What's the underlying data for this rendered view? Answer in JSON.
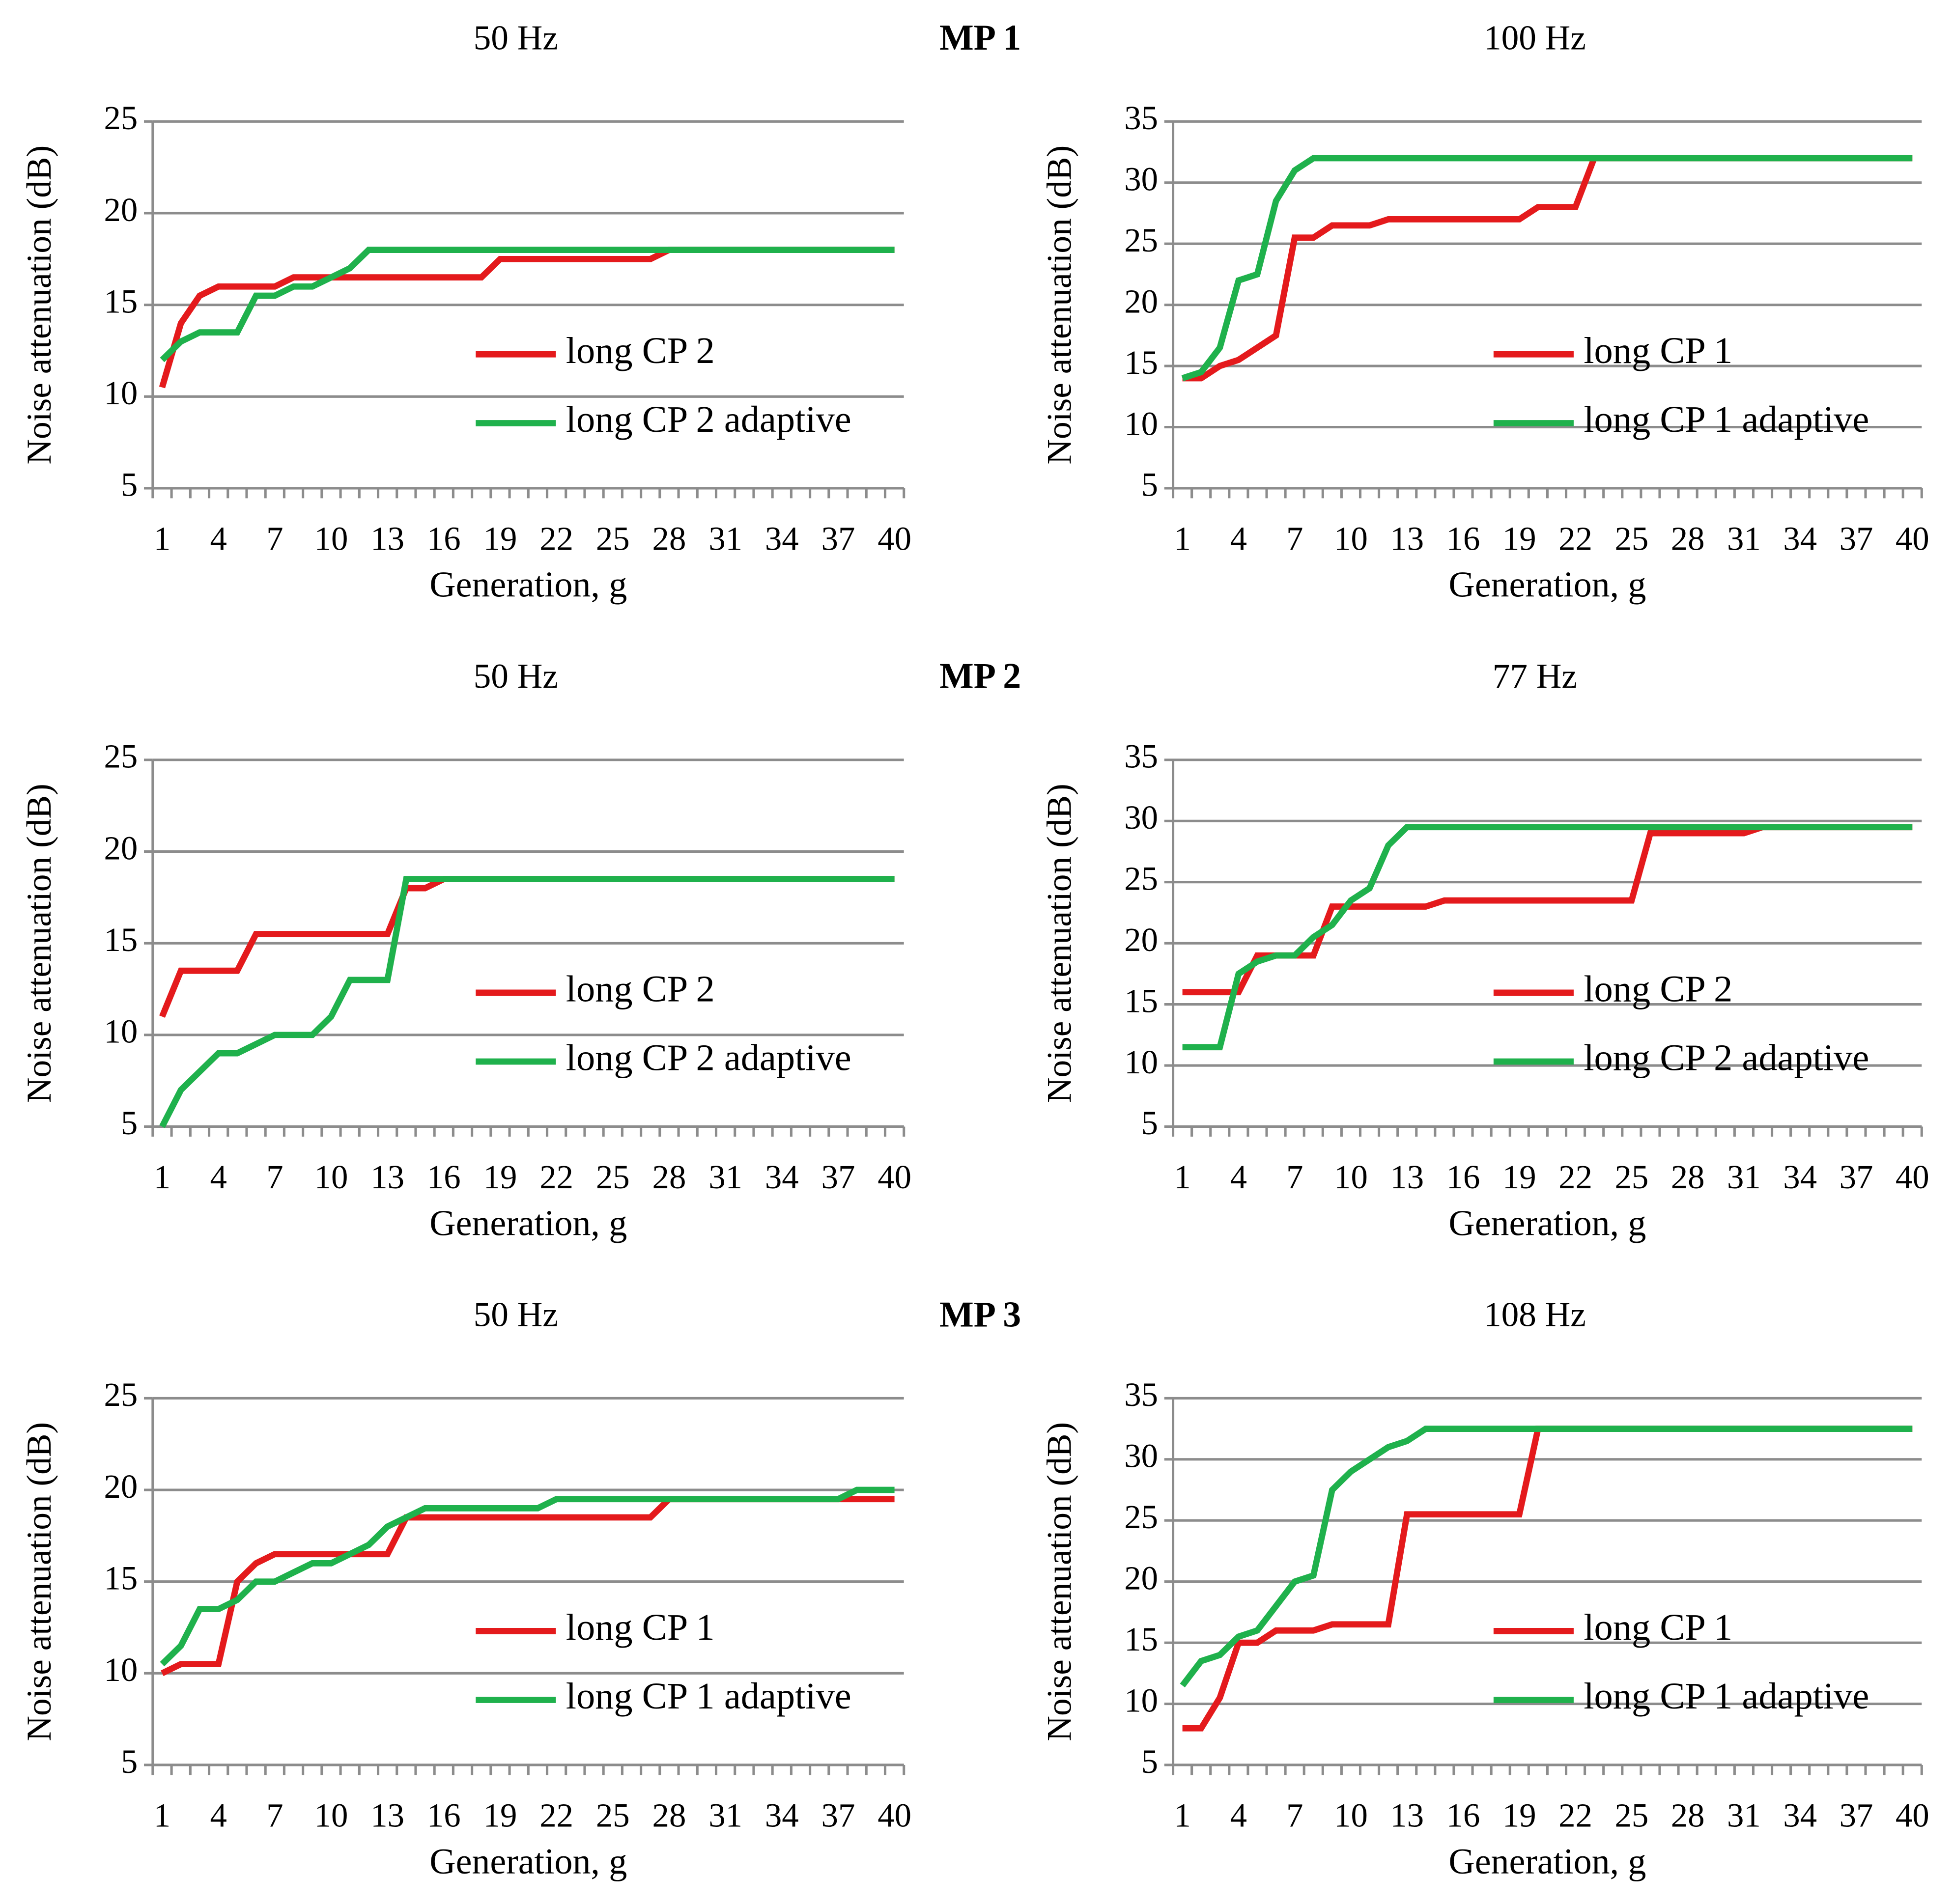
{
  "panel_labels": [
    "MP 1",
    "MP 2",
    "MP 3"
  ],
  "chart_data": [
    {
      "type": "line",
      "title": "50 Hz",
      "xlabel": "Generation, g",
      "ylabel": "Noise attenuation (dB)",
      "x": [
        1,
        2,
        3,
        4,
        5,
        6,
        7,
        8,
        9,
        10,
        11,
        12,
        13,
        14,
        15,
        16,
        17,
        18,
        19,
        20,
        21,
        22,
        23,
        24,
        25,
        26,
        27,
        28,
        29,
        30,
        31,
        32,
        33,
        34,
        35,
        36,
        37,
        38,
        39,
        40
      ],
      "xlim": [
        1,
        40
      ],
      "xticks": [
        1,
        4,
        7,
        10,
        13,
        16,
        19,
        22,
        25,
        28,
        31,
        34,
        37,
        40
      ],
      "ylim": [
        5,
        25
      ],
      "yticks": [
        5,
        10,
        15,
        20,
        25
      ],
      "grid": true,
      "legend": "lower right",
      "series": [
        {
          "name": "long CP 2",
          "color": "#e41a1c",
          "values": [
            10.5,
            14,
            15.5,
            16,
            16,
            16,
            16,
            16.5,
            16.5,
            16.5,
            16.5,
            16.5,
            16.5,
            16.5,
            16.5,
            16.5,
            16.5,
            16.5,
            17.5,
            17.5,
            17.5,
            17.5,
            17.5,
            17.5,
            17.5,
            17.5,
            17.5,
            18,
            18,
            18,
            18,
            18,
            18,
            18,
            18,
            18,
            18,
            18,
            18,
            18
          ]
        },
        {
          "name": "long CP 2 adaptive",
          "color": "#1fb14c",
          "values": [
            12,
            13,
            13.5,
            13.5,
            13.5,
            15.5,
            15.5,
            16,
            16,
            16.5,
            17,
            18,
            18,
            18,
            18,
            18,
            18,
            18,
            18,
            18,
            18,
            18,
            18,
            18,
            18,
            18,
            18,
            18,
            18,
            18,
            18,
            18,
            18,
            18,
            18,
            18,
            18,
            18,
            18,
            18
          ]
        }
      ]
    },
    {
      "type": "line",
      "title": "100 Hz",
      "xlabel": "Generation, g",
      "ylabel": "Noise attenuation (dB)",
      "x": [
        1,
        2,
        3,
        4,
        5,
        6,
        7,
        8,
        9,
        10,
        11,
        12,
        13,
        14,
        15,
        16,
        17,
        18,
        19,
        20,
        21,
        22,
        23,
        24,
        25,
        26,
        27,
        28,
        29,
        30,
        31,
        32,
        33,
        34,
        35,
        36,
        37,
        38,
        39,
        40
      ],
      "xlim": [
        1,
        40
      ],
      "xticks": [
        1,
        4,
        7,
        10,
        13,
        16,
        19,
        22,
        25,
        28,
        31,
        34,
        37,
        40
      ],
      "ylim": [
        5,
        35
      ],
      "yticks": [
        5,
        10,
        15,
        20,
        25,
        30,
        35
      ],
      "grid": true,
      "legend": "lower right",
      "series": [
        {
          "name": "long CP 1",
          "color": "#e41a1c",
          "values": [
            14,
            14,
            15,
            15.5,
            16.5,
            17.5,
            25.5,
            25.5,
            26.5,
            26.5,
            26.5,
            27,
            27,
            27,
            27,
            27,
            27,
            27,
            27,
            28,
            28,
            28,
            32,
            32,
            32,
            32,
            32,
            32,
            32,
            32,
            32,
            32,
            32,
            32,
            32,
            32,
            32,
            32,
            32,
            32
          ]
        },
        {
          "name": "long CP 1 adaptive",
          "color": "#1fb14c",
          "values": [
            14,
            14.5,
            16.5,
            22,
            22.5,
            28.5,
            31,
            32,
            32,
            32,
            32,
            32,
            32,
            32,
            32,
            32,
            32,
            32,
            32,
            32,
            32,
            32,
            32,
            32,
            32,
            32,
            32,
            32,
            32,
            32,
            32,
            32,
            32,
            32,
            32,
            32,
            32,
            32,
            32,
            32
          ]
        }
      ]
    },
    {
      "type": "line",
      "title": "50 Hz",
      "xlabel": "Generation, g",
      "ylabel": "Noise attenuation (dB)",
      "x": [
        1,
        2,
        3,
        4,
        5,
        6,
        7,
        8,
        9,
        10,
        11,
        12,
        13,
        14,
        15,
        16,
        17,
        18,
        19,
        20,
        21,
        22,
        23,
        24,
        25,
        26,
        27,
        28,
        29,
        30,
        31,
        32,
        33,
        34,
        35,
        36,
        37,
        38,
        39,
        40
      ],
      "xlim": [
        1,
        40
      ],
      "xticks": [
        1,
        4,
        7,
        10,
        13,
        16,
        19,
        22,
        25,
        28,
        31,
        34,
        37,
        40
      ],
      "ylim": [
        5,
        25
      ],
      "yticks": [
        5,
        10,
        15,
        20,
        25
      ],
      "grid": true,
      "legend": "lower right",
      "series": [
        {
          "name": "long CP 2",
          "color": "#e41a1c",
          "values": [
            11,
            13.5,
            13.5,
            13.5,
            13.5,
            15.5,
            15.5,
            15.5,
            15.5,
            15.5,
            15.5,
            15.5,
            15.5,
            18,
            18,
            18.5,
            18.5,
            18.5,
            18.5,
            18.5,
            18.5,
            18.5,
            18.5,
            18.5,
            18.5,
            18.5,
            18.5,
            18.5,
            18.5,
            18.5,
            18.5,
            18.5,
            18.5,
            18.5,
            18.5,
            18.5,
            18.5,
            18.5,
            18.5,
            18.5
          ]
        },
        {
          "name": "long CP 2 adaptive",
          "color": "#1fb14c",
          "values": [
            5,
            7,
            8,
            9,
            9,
            9.5,
            10,
            10,
            10,
            11,
            13,
            13,
            13,
            18.5,
            18.5,
            18.5,
            18.5,
            18.5,
            18.5,
            18.5,
            18.5,
            18.5,
            18.5,
            18.5,
            18.5,
            18.5,
            18.5,
            18.5,
            18.5,
            18.5,
            18.5,
            18.5,
            18.5,
            18.5,
            18.5,
            18.5,
            18.5,
            18.5,
            18.5,
            18.5
          ]
        }
      ]
    },
    {
      "type": "line",
      "title": "77 Hz",
      "xlabel": "Generation, g",
      "ylabel": "Noise attenuation (dB)",
      "x": [
        1,
        2,
        3,
        4,
        5,
        6,
        7,
        8,
        9,
        10,
        11,
        12,
        13,
        14,
        15,
        16,
        17,
        18,
        19,
        20,
        21,
        22,
        23,
        24,
        25,
        26,
        27,
        28,
        29,
        30,
        31,
        32,
        33,
        34,
        35,
        36,
        37,
        38,
        39,
        40
      ],
      "xlim": [
        1,
        40
      ],
      "xticks": [
        1,
        4,
        7,
        10,
        13,
        16,
        19,
        22,
        25,
        28,
        31,
        34,
        37,
        40
      ],
      "ylim": [
        5,
        35
      ],
      "yticks": [
        5,
        10,
        15,
        20,
        25,
        30,
        35
      ],
      "grid": true,
      "legend": "lower right",
      "series": [
        {
          "name": "long CP 2",
          "color": "#e41a1c",
          "values": [
            16,
            16,
            16,
            16,
            19,
            19,
            19,
            19,
            23,
            23,
            23,
            23,
            23,
            23,
            23.5,
            23.5,
            23.5,
            23.5,
            23.5,
            23.5,
            23.5,
            23.5,
            23.5,
            23.5,
            23.5,
            29,
            29,
            29,
            29,
            29,
            29,
            29.5,
            29.5,
            29.5,
            29.5,
            29.5,
            29.5,
            29.5,
            29.5,
            29.5
          ]
        },
        {
          "name": "long CP 2 adaptive",
          "color": "#1fb14c",
          "values": [
            11.5,
            11.5,
            11.5,
            17.5,
            18.5,
            19,
            19,
            20.5,
            21.5,
            23.5,
            24.5,
            28,
            29.5,
            29.5,
            29.5,
            29.5,
            29.5,
            29.5,
            29.5,
            29.5,
            29.5,
            29.5,
            29.5,
            29.5,
            29.5,
            29.5,
            29.5,
            29.5,
            29.5,
            29.5,
            29.5,
            29.5,
            29.5,
            29.5,
            29.5,
            29.5,
            29.5,
            29.5,
            29.5,
            29.5
          ]
        }
      ]
    },
    {
      "type": "line",
      "title": "50 Hz",
      "xlabel": "Generation, g",
      "ylabel": "Noise attenuation (dB)",
      "x": [
        1,
        2,
        3,
        4,
        5,
        6,
        7,
        8,
        9,
        10,
        11,
        12,
        13,
        14,
        15,
        16,
        17,
        18,
        19,
        20,
        21,
        22,
        23,
        24,
        25,
        26,
        27,
        28,
        29,
        30,
        31,
        32,
        33,
        34,
        35,
        36,
        37,
        38,
        39,
        40
      ],
      "xlim": [
        1,
        40
      ],
      "xticks": [
        1,
        4,
        7,
        10,
        13,
        16,
        19,
        22,
        25,
        28,
        31,
        34,
        37,
        40
      ],
      "ylim": [
        5,
        25
      ],
      "yticks": [
        5,
        10,
        15,
        20,
        25
      ],
      "grid": true,
      "legend": "lower right",
      "series": [
        {
          "name": "long CP 1",
          "color": "#e41a1c",
          "values": [
            10,
            10.5,
            10.5,
            10.5,
            15,
            16,
            16.5,
            16.5,
            16.5,
            16.5,
            16.5,
            16.5,
            16.5,
            18.5,
            18.5,
            18.5,
            18.5,
            18.5,
            18.5,
            18.5,
            18.5,
            18.5,
            18.5,
            18.5,
            18.5,
            18.5,
            18.5,
            19.5,
            19.5,
            19.5,
            19.5,
            19.5,
            19.5,
            19.5,
            19.5,
            19.5,
            19.5,
            19.5,
            19.5,
            19.5
          ]
        },
        {
          "name": "long CP 1 adaptive",
          "color": "#1fb14c",
          "values": [
            10.5,
            11.5,
            13.5,
            13.5,
            14,
            15,
            15,
            15.5,
            16,
            16,
            16.5,
            17,
            18,
            18.5,
            19,
            19,
            19,
            19,
            19,
            19,
            19,
            19.5,
            19.5,
            19.5,
            19.5,
            19.5,
            19.5,
            19.5,
            19.5,
            19.5,
            19.5,
            19.5,
            19.5,
            19.5,
            19.5,
            19.5,
            19.5,
            20,
            20,
            20
          ]
        }
      ]
    },
    {
      "type": "line",
      "title": "108 Hz",
      "xlabel": "Generation, g",
      "ylabel": "Noise attenuation (dB)",
      "x": [
        1,
        2,
        3,
        4,
        5,
        6,
        7,
        8,
        9,
        10,
        11,
        12,
        13,
        14,
        15,
        16,
        17,
        18,
        19,
        20,
        21,
        22,
        23,
        24,
        25,
        26,
        27,
        28,
        29,
        30,
        31,
        32,
        33,
        34,
        35,
        36,
        37,
        38,
        39,
        40
      ],
      "xlim": [
        1,
        40
      ],
      "xticks": [
        1,
        4,
        7,
        10,
        13,
        16,
        19,
        22,
        25,
        28,
        31,
        34,
        37,
        40
      ],
      "ylim": [
        5,
        35
      ],
      "yticks": [
        5,
        10,
        15,
        20,
        25,
        30,
        35
      ],
      "grid": true,
      "legend": "lower right",
      "series": [
        {
          "name": "long CP 1",
          "color": "#e41a1c",
          "values": [
            8,
            8,
            10.5,
            15,
            15,
            16,
            16,
            16,
            16.5,
            16.5,
            16.5,
            16.5,
            25.5,
            25.5,
            25.5,
            25.5,
            25.5,
            25.5,
            25.5,
            32.5,
            32.5,
            32.5,
            32.5,
            32.5,
            32.5,
            32.5,
            32.5,
            32.5,
            32.5,
            32.5,
            32.5,
            32.5,
            32.5,
            32.5,
            32.5,
            32.5,
            32.5,
            32.5,
            32.5,
            32.5
          ]
        },
        {
          "name": "long CP 1 adaptive",
          "color": "#1fb14c",
          "values": [
            11.5,
            13.5,
            14,
            15.5,
            16,
            18,
            20,
            20.5,
            27.5,
            29,
            30,
            31,
            31.5,
            32.5,
            32.5,
            32.5,
            32.5,
            32.5,
            32.5,
            32.5,
            32.5,
            32.5,
            32.5,
            32.5,
            32.5,
            32.5,
            32.5,
            32.5,
            32.5,
            32.5,
            32.5,
            32.5,
            32.5,
            32.5,
            32.5,
            32.5,
            32.5,
            32.5,
            32.5,
            32.5
          ]
        }
      ]
    }
  ]
}
